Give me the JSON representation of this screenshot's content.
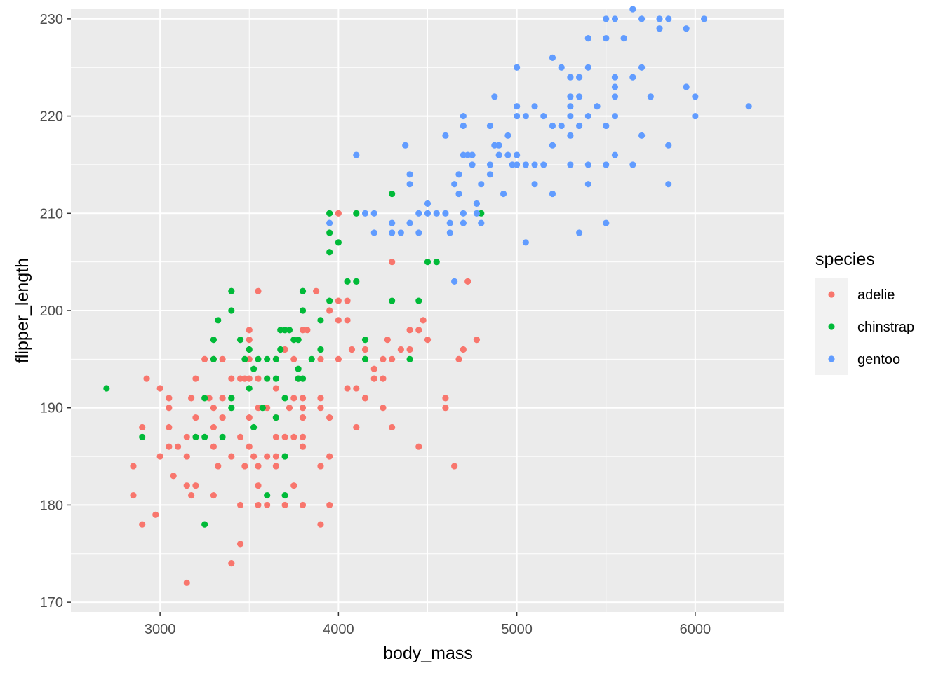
{
  "chart_data": {
    "type": "scatter",
    "title": "",
    "xlabel": "body_mass",
    "ylabel": "flipper_length",
    "xlim": [
      2500,
      6500
    ],
    "ylim": [
      169,
      231
    ],
    "xticks": [
      3000,
      4000,
      5000,
      6000
    ],
    "yticks": [
      170,
      180,
      190,
      200,
      210,
      220,
      230
    ],
    "grid": true,
    "legend": {
      "title": "species",
      "placement": "right"
    },
    "series": [
      {
        "name": "adelie",
        "color": "#F8766D",
        "points": [
          [
            2850,
            184
          ],
          [
            2850,
            181
          ],
          [
            2900,
            188
          ],
          [
            2900,
            178
          ],
          [
            2925,
            193
          ],
          [
            2975,
            179
          ],
          [
            3000,
            192
          ],
          [
            3000,
            185
          ],
          [
            3050,
            191
          ],
          [
            3050,
            190
          ],
          [
            3050,
            188
          ],
          [
            3050,
            186
          ],
          [
            3075,
            183
          ],
          [
            3100,
            186
          ],
          [
            3150,
            187
          ],
          [
            3150,
            185
          ],
          [
            3150,
            182
          ],
          [
            3150,
            172
          ],
          [
            3175,
            191
          ],
          [
            3175,
            181
          ],
          [
            3200,
            193
          ],
          [
            3200,
            189
          ],
          [
            3200,
            187
          ],
          [
            3200,
            182
          ],
          [
            3250,
            195
          ],
          [
            3275,
            191
          ],
          [
            3300,
            195
          ],
          [
            3300,
            190
          ],
          [
            3300,
            188
          ],
          [
            3300,
            186
          ],
          [
            3300,
            181
          ],
          [
            3325,
            184
          ],
          [
            3350,
            195
          ],
          [
            3350,
            191
          ],
          [
            3350,
            189
          ],
          [
            3400,
            193
          ],
          [
            3400,
            191
          ],
          [
            3400,
            185
          ],
          [
            3400,
            174
          ],
          [
            3450,
            193
          ],
          [
            3450,
            187
          ],
          [
            3450,
            180
          ],
          [
            3450,
            176
          ],
          [
            3475,
            193
          ],
          [
            3475,
            184
          ],
          [
            3500,
            198
          ],
          [
            3500,
            197
          ],
          [
            3500,
            195
          ],
          [
            3500,
            193
          ],
          [
            3500,
            189
          ],
          [
            3500,
            186
          ],
          [
            3525,
            185
          ],
          [
            3550,
            202
          ],
          [
            3550,
            193
          ],
          [
            3550,
            190
          ],
          [
            3550,
            184
          ],
          [
            3550,
            182
          ],
          [
            3550,
            180
          ],
          [
            3600,
            193
          ],
          [
            3600,
            190
          ],
          [
            3600,
            185
          ],
          [
            3600,
            180
          ],
          [
            3650,
            195
          ],
          [
            3650,
            192
          ],
          [
            3650,
            189
          ],
          [
            3650,
            187
          ],
          [
            3650,
            185
          ],
          [
            3650,
            184
          ],
          [
            3700,
            196
          ],
          [
            3700,
            187
          ],
          [
            3700,
            180
          ],
          [
            3725,
            190
          ],
          [
            3750,
            195
          ],
          [
            3750,
            191
          ],
          [
            3750,
            187
          ],
          [
            3750,
            182
          ],
          [
            3775,
            193
          ],
          [
            3800,
            198
          ],
          [
            3800,
            191
          ],
          [
            3800,
            190
          ],
          [
            3800,
            189
          ],
          [
            3800,
            187
          ],
          [
            3800,
            186
          ],
          [
            3800,
            180
          ],
          [
            3825,
            198
          ],
          [
            3875,
            202
          ],
          [
            3900,
            195
          ],
          [
            3900,
            191
          ],
          [
            3900,
            190
          ],
          [
            3900,
            184
          ],
          [
            3900,
            178
          ],
          [
            3950,
            200
          ],
          [
            3950,
            189
          ],
          [
            3950,
            185
          ],
          [
            3950,
            180
          ],
          [
            4000,
            210
          ],
          [
            4000,
            201
          ],
          [
            4000,
            195
          ],
          [
            4000,
            199
          ],
          [
            4050,
            201
          ],
          [
            4050,
            199
          ],
          [
            4050,
            192
          ],
          [
            4075,
            196
          ],
          [
            4100,
            192
          ],
          [
            4100,
            188
          ],
          [
            4150,
            196
          ],
          [
            4150,
            195
          ],
          [
            4150,
            191
          ],
          [
            4200,
            194
          ],
          [
            4200,
            193
          ],
          [
            4250,
            195
          ],
          [
            4250,
            193
          ],
          [
            4250,
            190
          ],
          [
            4275,
            197
          ],
          [
            4300,
            205
          ],
          [
            4300,
            195
          ],
          [
            4300,
            188
          ],
          [
            4350,
            196
          ],
          [
            4400,
            196
          ],
          [
            4400,
            198
          ],
          [
            4450,
            198
          ],
          [
            4450,
            186
          ],
          [
            4475,
            199
          ],
          [
            4500,
            197
          ],
          [
            4600,
            191
          ],
          [
            4600,
            190
          ],
          [
            4650,
            184
          ],
          [
            4675,
            195
          ],
          [
            4700,
            196
          ],
          [
            4725,
            203
          ],
          [
            4775,
            197
          ]
        ]
      },
      {
        "name": "chinstrap",
        "color": "#00BA38",
        "points": [
          [
            2700,
            192
          ],
          [
            2900,
            187
          ],
          [
            3250,
            191
          ],
          [
            3250,
            187
          ],
          [
            3250,
            178
          ],
          [
            3200,
            187
          ],
          [
            3300,
            197
          ],
          [
            3300,
            195
          ],
          [
            3325,
            199
          ],
          [
            3350,
            187
          ],
          [
            3400,
            202
          ],
          [
            3400,
            200
          ],
          [
            3400,
            191
          ],
          [
            3400,
            190
          ],
          [
            3450,
            197
          ],
          [
            3475,
            195
          ],
          [
            3500,
            196
          ],
          [
            3500,
            192
          ],
          [
            3525,
            194
          ],
          [
            3525,
            188
          ],
          [
            3550,
            195
          ],
          [
            3575,
            190
          ],
          [
            3600,
            195
          ],
          [
            3600,
            193
          ],
          [
            3600,
            181
          ],
          [
            3650,
            195
          ],
          [
            3650,
            193
          ],
          [
            3650,
            189
          ],
          [
            3675,
            196
          ],
          [
            3675,
            198
          ],
          [
            3700,
            198
          ],
          [
            3700,
            191
          ],
          [
            3700,
            185
          ],
          [
            3700,
            181
          ],
          [
            3725,
            198
          ],
          [
            3750,
            197
          ],
          [
            3775,
            197
          ],
          [
            3775,
            193
          ],
          [
            3775,
            194
          ],
          [
            3800,
            202
          ],
          [
            3800,
            200
          ],
          [
            3800,
            193
          ],
          [
            3850,
            195
          ],
          [
            3900,
            199
          ],
          [
            3900,
            196
          ],
          [
            3950,
            210
          ],
          [
            3950,
            206
          ],
          [
            3950,
            201
          ],
          [
            3950,
            208
          ],
          [
            4000,
            207
          ],
          [
            4050,
            203
          ],
          [
            4100,
            210
          ],
          [
            4100,
            203
          ],
          [
            4150,
            197
          ],
          [
            4150,
            195
          ],
          [
            4300,
            212
          ],
          [
            4300,
            201
          ],
          [
            4400,
            195
          ],
          [
            4450,
            201
          ],
          [
            4500,
            205
          ],
          [
            4550,
            205
          ],
          [
            4800,
            210
          ]
        ]
      },
      {
        "name": "gentoo",
        "color": "#619CFF",
        "points": [
          [
            3950,
            209
          ],
          [
            4100,
            216
          ],
          [
            4150,
            210
          ],
          [
            4200,
            210
          ],
          [
            4200,
            208
          ],
          [
            4300,
            208
          ],
          [
            4300,
            209
          ],
          [
            4350,
            208
          ],
          [
            4375,
            217
          ],
          [
            4400,
            214
          ],
          [
            4400,
            213
          ],
          [
            4400,
            209
          ],
          [
            4450,
            210
          ],
          [
            4450,
            208
          ],
          [
            4500,
            210
          ],
          [
            4500,
            211
          ],
          [
            4550,
            210
          ],
          [
            4600,
            218
          ],
          [
            4600,
            210
          ],
          [
            4625,
            209
          ],
          [
            4625,
            208
          ],
          [
            4650,
            213
          ],
          [
            4650,
            203
          ],
          [
            4675,
            212
          ],
          [
            4675,
            214
          ],
          [
            4700,
            220
          ],
          [
            4700,
            219
          ],
          [
            4700,
            216
          ],
          [
            4700,
            210
          ],
          [
            4700,
            209
          ],
          [
            4725,
            216
          ],
          [
            4750,
            216
          ],
          [
            4750,
            215
          ],
          [
            4775,
            211
          ],
          [
            4775,
            210
          ],
          [
            4800,
            209
          ],
          [
            4800,
            213
          ],
          [
            4850,
            219
          ],
          [
            4850,
            215
          ],
          [
            4850,
            214
          ],
          [
            4875,
            217
          ],
          [
            4875,
            222
          ],
          [
            4900,
            217
          ],
          [
            4900,
            216
          ],
          [
            4925,
            212
          ],
          [
            4950,
            216
          ],
          [
            4950,
            218
          ],
          [
            4975,
            215
          ],
          [
            5000,
            225
          ],
          [
            5000,
            221
          ],
          [
            5000,
            215
          ],
          [
            5000,
            216
          ],
          [
            5000,
            220
          ],
          [
            5050,
            220
          ],
          [
            5050,
            215
          ],
          [
            5050,
            207
          ],
          [
            5100,
            221
          ],
          [
            5100,
            215
          ],
          [
            5100,
            213
          ],
          [
            5150,
            215
          ],
          [
            5150,
            220
          ],
          [
            5200,
            226
          ],
          [
            5200,
            219
          ],
          [
            5200,
            217
          ],
          [
            5200,
            212
          ],
          [
            5250,
            225
          ],
          [
            5250,
            219
          ],
          [
            5300,
            224
          ],
          [
            5300,
            222
          ],
          [
            5300,
            221
          ],
          [
            5300,
            215
          ],
          [
            5300,
            218
          ],
          [
            5300,
            220
          ],
          [
            5350,
            224
          ],
          [
            5350,
            222
          ],
          [
            5350,
            208
          ],
          [
            5350,
            219
          ],
          [
            5400,
            228
          ],
          [
            5400,
            225
          ],
          [
            5400,
            215
          ],
          [
            5400,
            213
          ],
          [
            5400,
            220
          ],
          [
            5450,
            221
          ],
          [
            5500,
            230
          ],
          [
            5500,
            228
          ],
          [
            5500,
            219
          ],
          [
            5500,
            215
          ],
          [
            5500,
            209
          ],
          [
            5550,
            230
          ],
          [
            5550,
            224
          ],
          [
            5550,
            223
          ],
          [
            5550,
            222
          ],
          [
            5550,
            220
          ],
          [
            5550,
            216
          ],
          [
            5600,
            228
          ],
          [
            5650,
            231
          ],
          [
            5650,
            224
          ],
          [
            5650,
            215
          ],
          [
            5700,
            230
          ],
          [
            5700,
            225
          ],
          [
            5700,
            218
          ],
          [
            5750,
            222
          ],
          [
            5800,
            230
          ],
          [
            5800,
            229
          ],
          [
            5850,
            230
          ],
          [
            5850,
            217
          ],
          [
            5850,
            213
          ],
          [
            5950,
            229
          ],
          [
            5950,
            223
          ],
          [
            6000,
            222
          ],
          [
            6000,
            220
          ],
          [
            6050,
            230
          ],
          [
            6300,
            221
          ]
        ]
      }
    ]
  }
}
